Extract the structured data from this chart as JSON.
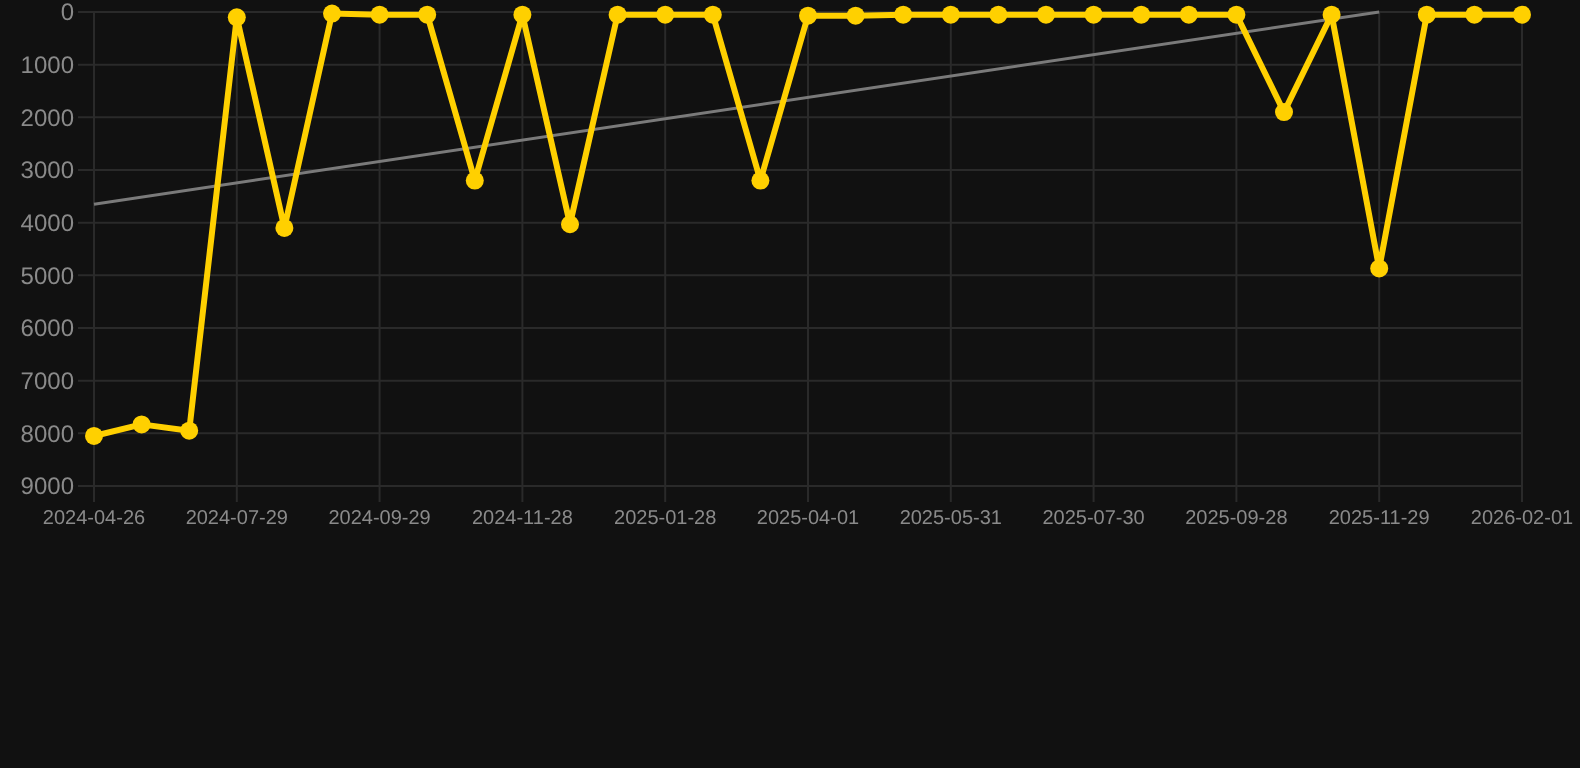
{
  "chart_data": {
    "type": "line",
    "categories": [
      "2024-04-26",
      null,
      null,
      "2024-07-29",
      null,
      null,
      "2024-09-29",
      null,
      null,
      "2024-11-28",
      null,
      null,
      "2025-01-28",
      null,
      null,
      "2025-04-01",
      null,
      null,
      "2025-05-31",
      null,
      null,
      "2025-07-30",
      null,
      null,
      "2025-09-28",
      null,
      null,
      "2025-11-29",
      null,
      null,
      "2026-02-01"
    ],
    "series": [
      {
        "color": "#ffd000",
        "marker": "circle",
        "values": [
          8050,
          7830,
          7950,
          100,
          4100,
          30,
          50,
          50,
          3200,
          50,
          4030,
          50,
          50,
          50,
          3200,
          70,
          70,
          50,
          50,
          50,
          50,
          50,
          50,
          50,
          50,
          1900,
          50,
          4870,
          50,
          50,
          50
        ]
      },
      {
        "color": "#7a7a7a",
        "marker": "none",
        "values": [
          3650,
          null,
          null,
          null,
          null,
          null,
          null,
          null,
          null,
          null,
          null,
          null,
          null,
          null,
          null,
          null,
          null,
          null,
          null,
          null,
          null,
          null,
          null,
          null,
          null,
          null,
          null,
          0,
          null,
          null,
          null
        ]
      }
    ],
    "ylim": [
      9000,
      0
    ],
    "yticks": [
      0,
      1000,
      2000,
      3000,
      4000,
      5000,
      6000,
      7000,
      8000,
      9000
    ],
    "grid": true
  }
}
